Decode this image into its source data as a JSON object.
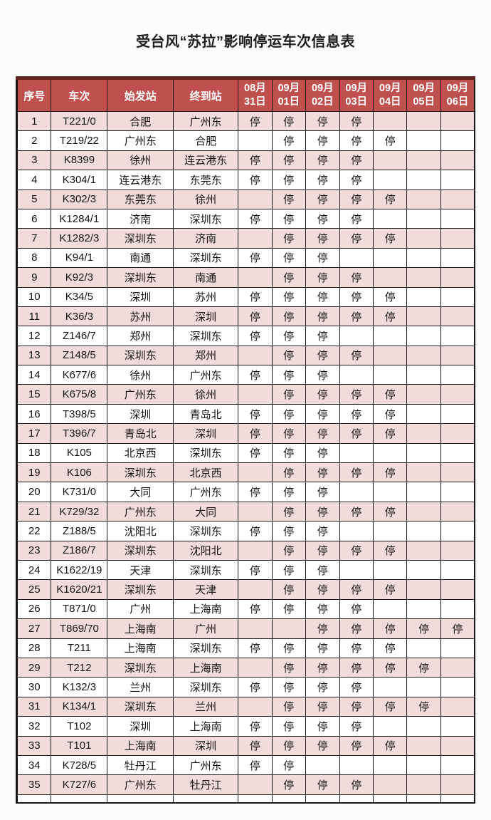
{
  "title": "受台风“苏拉”影响停运车次信息表",
  "stop_marker": "停",
  "colors": {
    "header_bg": "#C0504D",
    "header_text": "#FFFFFF",
    "alt_row_bg": "#F2DCDB",
    "row_bg": "#FFFFFF",
    "table_top_border": "#632523",
    "grid_border": "#1B1B1B"
  },
  "table": {
    "columns": [
      "序号",
      "车次",
      "始发站",
      "终到站"
    ],
    "date_columns": [
      {
        "month": "08月",
        "day": "31日"
      },
      {
        "month": "09月",
        "day": "01日"
      },
      {
        "month": "09月",
        "day": "02日"
      },
      {
        "month": "09月",
        "day": "03日"
      },
      {
        "month": "09月",
        "day": "04日"
      },
      {
        "month": "09月",
        "day": "05日"
      },
      {
        "month": "09月",
        "day": "06日"
      }
    ],
    "rows": [
      {
        "no": "1",
        "train": "T221/0",
        "origin": "合肥",
        "destination": "广州东",
        "stops": [
          "停",
          "停",
          "停",
          "停",
          "",
          "",
          ""
        ]
      },
      {
        "no": "2",
        "train": "T219/22",
        "origin": "广州东",
        "destination": "合肥",
        "stops": [
          "",
          "停",
          "停",
          "停",
          "停",
          "",
          ""
        ]
      },
      {
        "no": "3",
        "train": "K8399",
        "origin": "徐州",
        "destination": "连云港东",
        "stops": [
          "停",
          "停",
          "停",
          "停",
          "",
          "",
          ""
        ]
      },
      {
        "no": "4",
        "train": "K304/1",
        "origin": "连云港东",
        "destination": "东莞东",
        "stops": [
          "停",
          "停",
          "停",
          "停",
          "",
          "",
          ""
        ]
      },
      {
        "no": "5",
        "train": "K302/3",
        "origin": "东莞东",
        "destination": "徐州",
        "stops": [
          "",
          "停",
          "停",
          "停",
          "停",
          "",
          ""
        ]
      },
      {
        "no": "6",
        "train": "K1284/1",
        "origin": "济南",
        "destination": "深圳东",
        "stops": [
          "停",
          "停",
          "停",
          "停",
          "",
          "",
          ""
        ]
      },
      {
        "no": "7",
        "train": "K1282/3",
        "origin": "深圳东",
        "destination": "济南",
        "stops": [
          "",
          "停",
          "停",
          "停",
          "停",
          "",
          ""
        ]
      },
      {
        "no": "8",
        "train": "K94/1",
        "origin": "南通",
        "destination": "深圳东",
        "stops": [
          "停",
          "停",
          "停",
          "",
          "",
          "",
          ""
        ]
      },
      {
        "no": "9",
        "train": "K92/3",
        "origin": "深圳东",
        "destination": "南通",
        "stops": [
          "",
          "停",
          "停",
          "停",
          "",
          "",
          ""
        ]
      },
      {
        "no": "10",
        "train": "K34/5",
        "origin": "深圳",
        "destination": "苏州",
        "stops": [
          "停",
          "停",
          "停",
          "停",
          "停",
          "",
          ""
        ]
      },
      {
        "no": "11",
        "train": "K36/3",
        "origin": "苏州",
        "destination": "深圳",
        "stops": [
          "停",
          "停",
          "停",
          "停",
          "停",
          "",
          ""
        ]
      },
      {
        "no": "12",
        "train": "Z146/7",
        "origin": "郑州",
        "destination": "深圳东",
        "stops": [
          "停",
          "停",
          "停",
          "",
          "",
          "",
          ""
        ]
      },
      {
        "no": "13",
        "train": "Z148/5",
        "origin": "深圳东",
        "destination": "郑州",
        "stops": [
          "",
          "停",
          "停",
          "停",
          "",
          "",
          ""
        ]
      },
      {
        "no": "14",
        "train": "K677/6",
        "origin": "徐州",
        "destination": "广州东",
        "stops": [
          "停",
          "停",
          "停",
          "",
          "",
          "",
          ""
        ]
      },
      {
        "no": "15",
        "train": "K675/8",
        "origin": "广州东",
        "destination": "徐州",
        "stops": [
          "",
          "停",
          "停",
          "停",
          "停",
          "",
          ""
        ]
      },
      {
        "no": "16",
        "train": "T398/5",
        "origin": "深圳",
        "destination": "青岛北",
        "stops": [
          "停",
          "停",
          "停",
          "停",
          "停",
          "",
          ""
        ]
      },
      {
        "no": "17",
        "train": "T396/7",
        "origin": "青岛北",
        "destination": "深圳",
        "stops": [
          "停",
          "停",
          "停",
          "停",
          "停",
          "",
          ""
        ]
      },
      {
        "no": "18",
        "train": "K105",
        "origin": "北京西",
        "destination": "深圳东",
        "stops": [
          "停",
          "停",
          "停",
          "",
          "",
          "",
          ""
        ]
      },
      {
        "no": "19",
        "train": "K106",
        "origin": "深圳东",
        "destination": "北京西",
        "stops": [
          "",
          "停",
          "停",
          "停",
          "停",
          "",
          ""
        ]
      },
      {
        "no": "20",
        "train": "K731/0",
        "origin": "大同",
        "destination": "广州东",
        "stops": [
          "停",
          "停",
          "停",
          "",
          "",
          "",
          ""
        ]
      },
      {
        "no": "21",
        "train": "K729/32",
        "origin": "广州东",
        "destination": "大同",
        "stops": [
          "",
          "停",
          "停",
          "停",
          "停",
          "",
          ""
        ]
      },
      {
        "no": "22",
        "train": "Z188/5",
        "origin": "沈阳北",
        "destination": "深圳东",
        "stops": [
          "停",
          "停",
          "停",
          "",
          "",
          "",
          ""
        ]
      },
      {
        "no": "23",
        "train": "Z186/7",
        "origin": "深圳东",
        "destination": "沈阳北",
        "stops": [
          "",
          "停",
          "停",
          "停",
          "停",
          "",
          ""
        ]
      },
      {
        "no": "24",
        "train": "K1622/19",
        "origin": "天津",
        "destination": "深圳东",
        "stops": [
          "停",
          "停",
          "停",
          "",
          "",
          "",
          ""
        ]
      },
      {
        "no": "25",
        "train": "K1620/21",
        "origin": "深圳东",
        "destination": "天津",
        "stops": [
          "",
          "停",
          "停",
          "停",
          "停",
          "",
          ""
        ]
      },
      {
        "no": "26",
        "train": "T871/0",
        "origin": "广州",
        "destination": "上海南",
        "stops": [
          "停",
          "停",
          "停",
          "停",
          "",
          "",
          ""
        ]
      },
      {
        "no": "27",
        "train": "T869/70",
        "origin": "上海南",
        "destination": "广州",
        "stops": [
          "",
          "",
          "停",
          "停",
          "停",
          "停",
          "停"
        ]
      },
      {
        "no": "28",
        "train": "T211",
        "origin": "上海南",
        "destination": "深圳东",
        "stops": [
          "停",
          "停",
          "停",
          "停",
          "停",
          "",
          ""
        ]
      },
      {
        "no": "29",
        "train": "T212",
        "origin": "深圳东",
        "destination": "上海南",
        "stops": [
          "",
          "停",
          "停",
          "停",
          "停",
          "停",
          ""
        ]
      },
      {
        "no": "30",
        "train": "K132/3",
        "origin": "兰州",
        "destination": "深圳东",
        "stops": [
          "停",
          "停",
          "停",
          "停",
          "",
          "",
          ""
        ]
      },
      {
        "no": "31",
        "train": "K134/1",
        "origin": "深圳东",
        "destination": "兰州",
        "stops": [
          "",
          "停",
          "停",
          "停",
          "停",
          "停",
          ""
        ]
      },
      {
        "no": "32",
        "train": "T102",
        "origin": "深圳",
        "destination": "上海南",
        "stops": [
          "停",
          "停",
          "停",
          "停",
          "",
          "",
          ""
        ]
      },
      {
        "no": "33",
        "train": "T101",
        "origin": "上海南",
        "destination": "深圳",
        "stops": [
          "停",
          "停",
          "停",
          "停",
          "停",
          "",
          ""
        ]
      },
      {
        "no": "34",
        "train": "K728/5",
        "origin": "牡丹江",
        "destination": "广州东",
        "stops": [
          "停",
          "停",
          "",
          "",
          "",
          "",
          ""
        ]
      },
      {
        "no": "35",
        "train": "K727/6",
        "origin": "广州东",
        "destination": "牡丹江",
        "stops": [
          "",
          "停",
          "停",
          "停",
          "",
          "",
          ""
        ]
      }
    ]
  }
}
